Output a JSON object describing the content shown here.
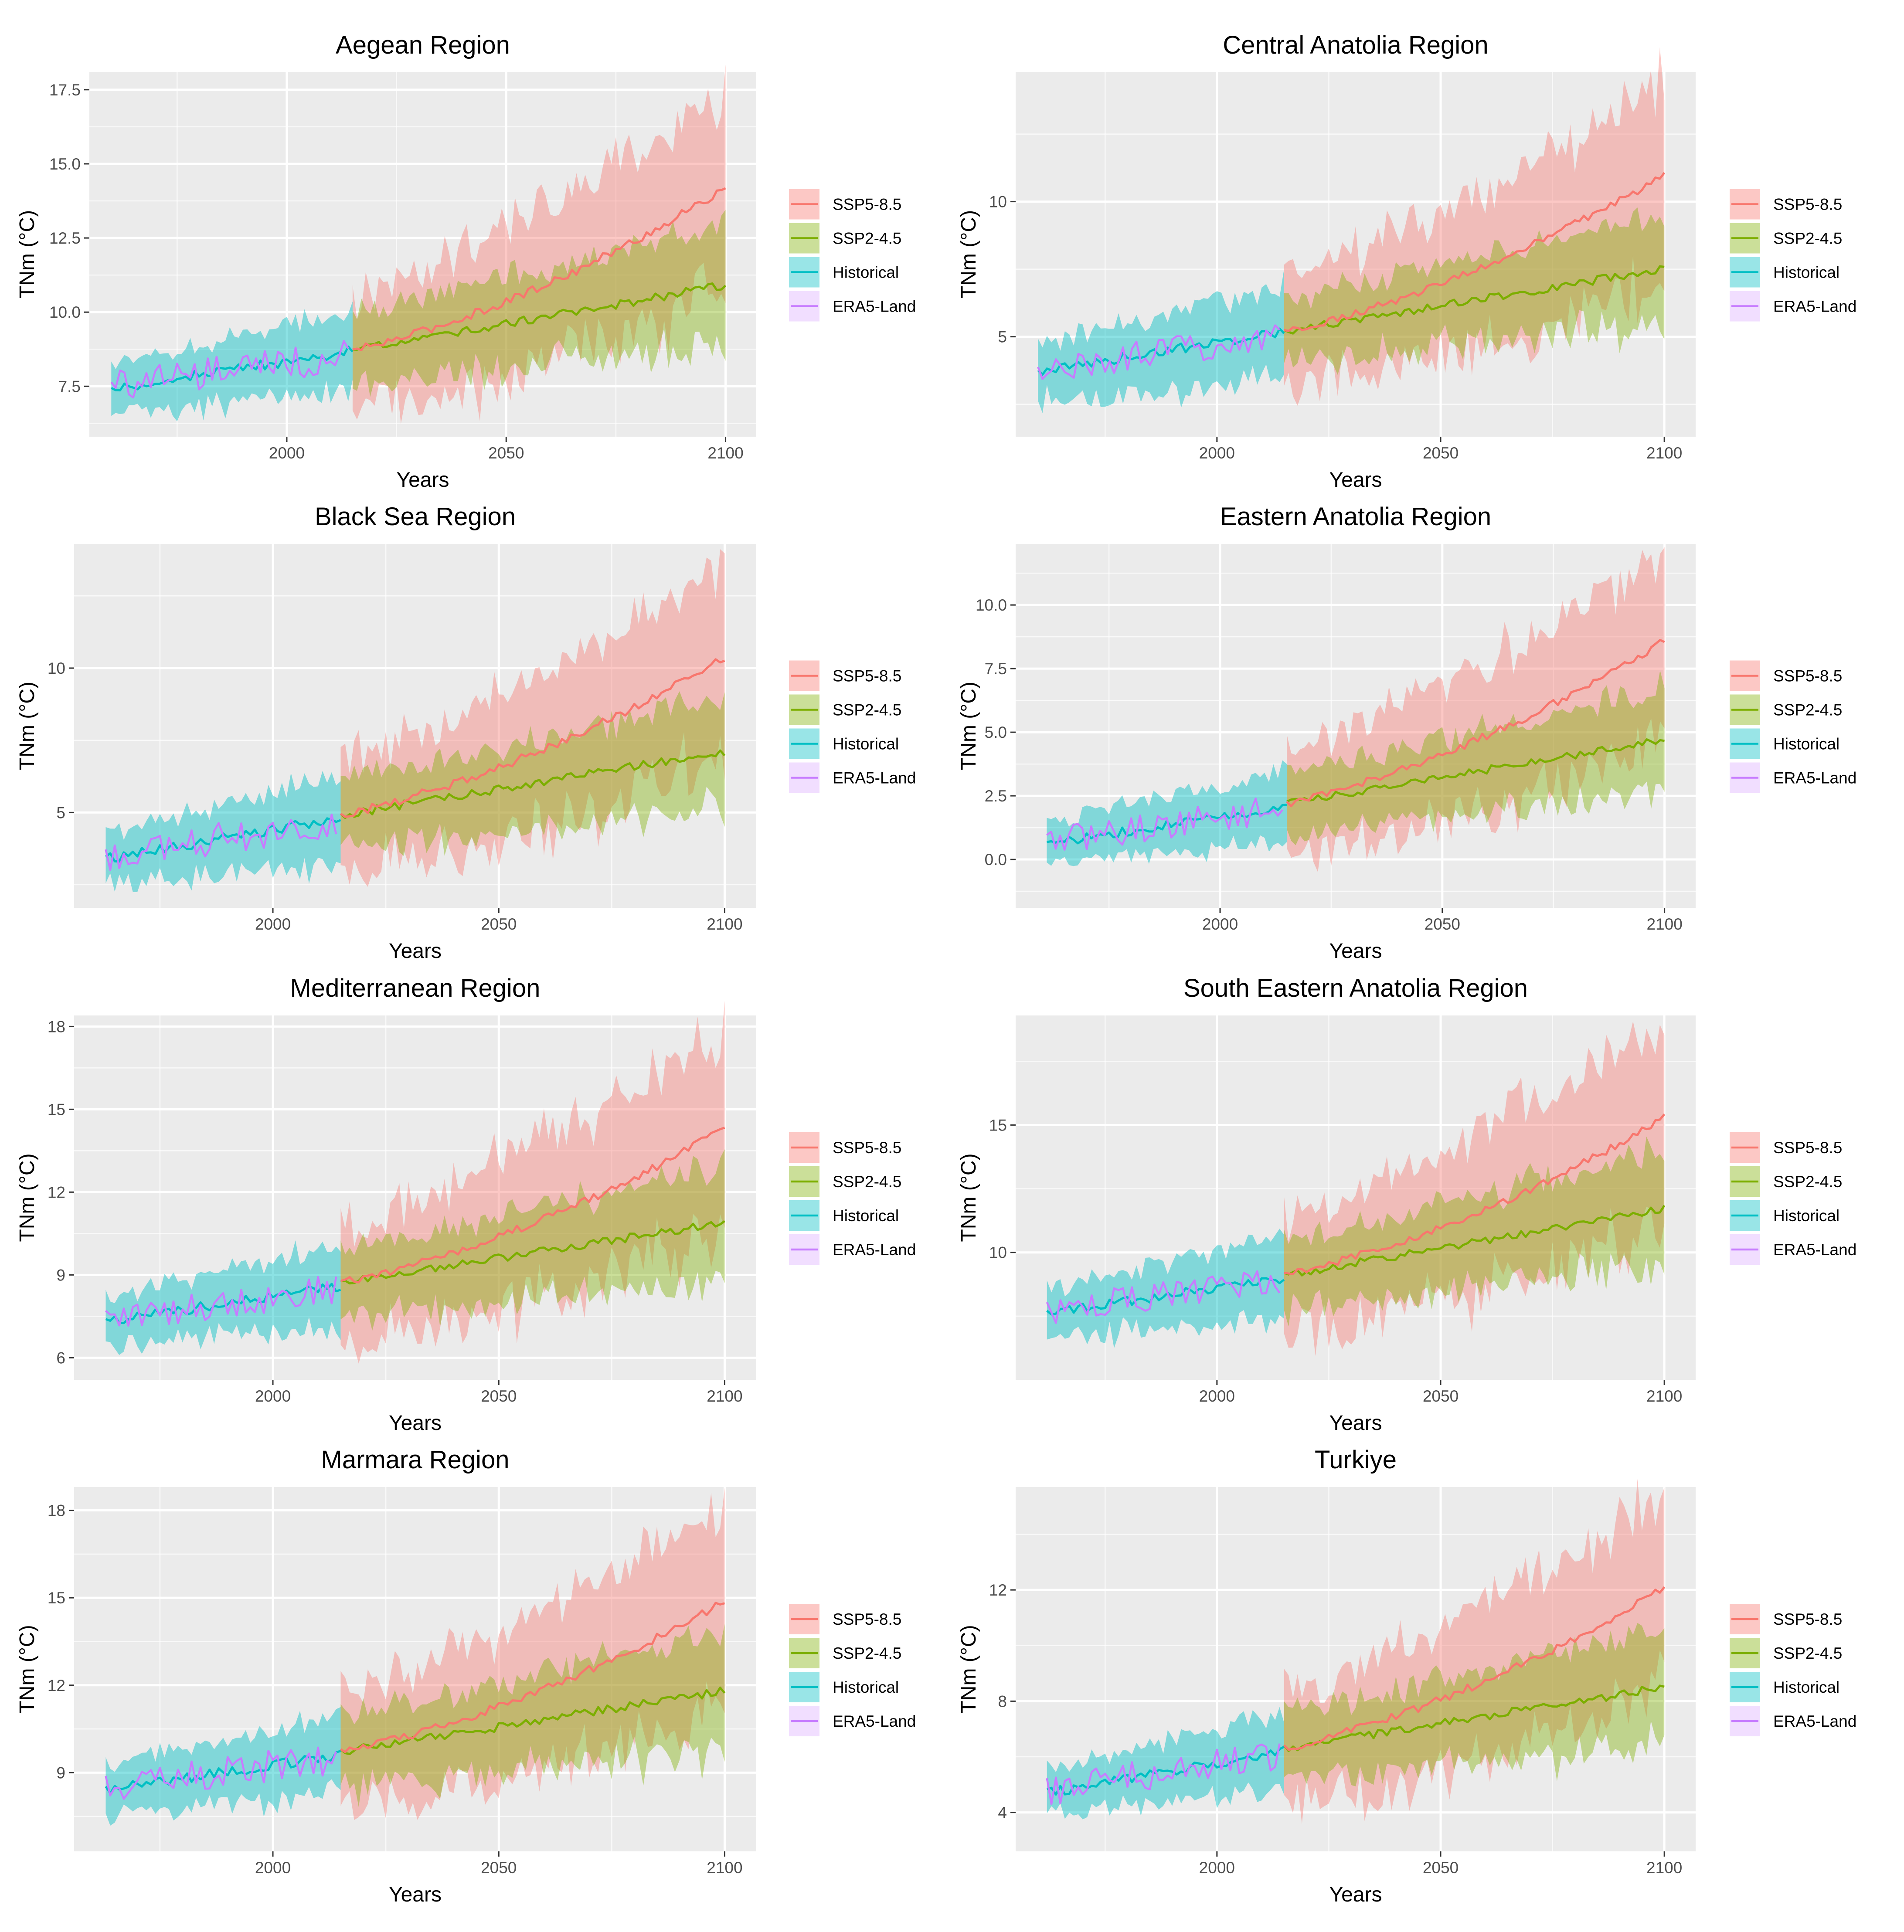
{
  "colors": {
    "panel_bg": "#EBEBEB",
    "grid": "#FFFFFF",
    "ssp585": "#F8766D",
    "ssp245": "#7CAE00",
    "historical": "#00BFC4",
    "era5": "#C77CFF",
    "text": "#000000",
    "tick_text": "#4D4D4D"
  },
  "legend": {
    "items": [
      {
        "key": "ssp585",
        "label": "SSP5-8.5"
      },
      {
        "key": "ssp245",
        "label": "SSP2-4.5"
      },
      {
        "key": "historical",
        "label": "Historical"
      },
      {
        "key": "era5",
        "label": "ERA5-Land"
      }
    ]
  },
  "chart_data": [
    {
      "type": "line",
      "title": "Aegean Region",
      "xlabel": "Years",
      "ylabel": "TNm (°C)",
      "xlim": [
        1955,
        2107
      ],
      "ylim": [
        5.8,
        18.1
      ],
      "xticks": [
        2000,
        2050,
        2100
      ],
      "yticks": [
        7.5,
        10.0,
        12.5,
        15.0,
        17.5
      ],
      "ytick_labels": [
        "7.5",
        "10.0",
        "12.5",
        "15.0",
        "17.5"
      ],
      "historical": {
        "start": 1960,
        "end": 2015,
        "v0": 7.4,
        "v1": 8.7,
        "band": 1.1
      },
      "era5": {
        "start": 1960,
        "end": 2014,
        "v0": 7.5,
        "v1": 8.5
      },
      "ssp245": {
        "start": 2015,
        "end": 2100,
        "v0": 8.7,
        "v1": 10.9,
        "band": 1.6
      },
      "ssp585": {
        "start": 2015,
        "end": 2100,
        "v0": 8.7,
        "v1": 14.2,
        "band": 2.6
      }
    },
    {
      "type": "line",
      "title": "Central Anatolia Region",
      "xlabel": "Years",
      "ylabel": "TNm (°C)",
      "xlim": [
        1955,
        2107
      ],
      "ylim": [
        1.3,
        14.8
      ],
      "xticks": [
        2000,
        2050,
        2100
      ],
      "yticks": [
        5,
        10
      ],
      "ytick_labels": [
        "5",
        "10"
      ],
      "historical": {
        "start": 1960,
        "end": 2015,
        "v0": 3.7,
        "v1": 5.2,
        "band": 1.4
      },
      "era5": {
        "start": 1960,
        "end": 2014,
        "v0": 3.7,
        "v1": 5.1
      },
      "ssp245": {
        "start": 2015,
        "end": 2100,
        "v0": 5.2,
        "v1": 7.5,
        "band": 1.6
      },
      "ssp585": {
        "start": 2015,
        "end": 2100,
        "v0": 5.2,
        "v1": 11.0,
        "band": 2.8
      }
    },
    {
      "type": "line",
      "title": "Black Sea Region",
      "xlabel": "Years",
      "ylabel": "TNm (°C)",
      "xlim": [
        1956,
        2107
      ],
      "ylim": [
        1.7,
        14.3
      ],
      "xticks": [
        2000,
        2050,
        2100
      ],
      "yticks": [
        5,
        10
      ],
      "ytick_labels": [
        "5",
        "10"
      ],
      "historical": {
        "start": 1963,
        "end": 2015,
        "v0": 3.4,
        "v1": 4.8,
        "band": 1.2
      },
      "era5": {
        "start": 1963,
        "end": 2014,
        "v0": 3.5,
        "v1": 4.7
      },
      "ssp245": {
        "start": 2015,
        "end": 2100,
        "v0": 4.9,
        "v1": 7.1,
        "band": 1.5
      },
      "ssp585": {
        "start": 2015,
        "end": 2100,
        "v0": 4.9,
        "v1": 10.4,
        "band": 2.6
      }
    },
    {
      "type": "line",
      "title": "Eastern Anatolia Region",
      "xlabel": "Years",
      "ylabel": "TNm (°C)",
      "xlim": [
        1954,
        2107
      ],
      "ylim": [
        -1.9,
        12.4
      ],
      "xticks": [
        2000,
        2050,
        2100
      ],
      "yticks": [
        0.0,
        2.5,
        5.0,
        7.5,
        10.0
      ],
      "ytick_labels": [
        "0.0",
        "2.5",
        "5.0",
        "7.5",
        "10.0"
      ],
      "historical": {
        "start": 1961,
        "end": 2015,
        "v0": 0.6,
        "v1": 2.1,
        "band": 1.1
      },
      "era5": {
        "start": 1961,
        "end": 2014,
        "v0": 0.7,
        "v1": 2.0
      },
      "ssp245": {
        "start": 2015,
        "end": 2100,
        "v0": 2.2,
        "v1": 4.7,
        "band": 1.6
      },
      "ssp585": {
        "start": 2015,
        "end": 2100,
        "v0": 2.2,
        "v1": 8.6,
        "band": 2.9
      }
    },
    {
      "type": "line",
      "title": "Mediterranean Region",
      "xlabel": "Years",
      "ylabel": "TNm (°C)",
      "xlim": [
        1956,
        2107
      ],
      "ylim": [
        5.2,
        18.4
      ],
      "xticks": [
        2000,
        2050,
        2100
      ],
      "yticks": [
        6,
        9,
        12,
        15,
        18
      ],
      "ytick_labels": [
        "6",
        "9",
        "12",
        "15",
        "18"
      ],
      "historical": {
        "start": 1963,
        "end": 2015,
        "v0": 7.3,
        "v1": 8.6,
        "band": 1.2
      },
      "era5": {
        "start": 1963,
        "end": 2014,
        "v0": 7.4,
        "v1": 8.5
      },
      "ssp245": {
        "start": 2015,
        "end": 2100,
        "v0": 8.7,
        "v1": 10.9,
        "band": 1.6
      },
      "ssp585": {
        "start": 2015,
        "end": 2100,
        "v0": 8.7,
        "v1": 14.3,
        "band": 2.8
      }
    },
    {
      "type": "line",
      "title": "South Eastern Anatolia Region",
      "xlabel": "Years",
      "ylabel": "TNm (°C)",
      "xlim": [
        1955,
        2107
      ],
      "ylim": [
        5.0,
        19.3
      ],
      "xticks": [
        2000,
        2050,
        2100
      ],
      "yticks": [
        10,
        15
      ],
      "ytick_labels": [
        "10",
        "15"
      ],
      "historical": {
        "start": 1962,
        "end": 2015,
        "v0": 7.6,
        "v1": 9.0,
        "band": 1.3
      },
      "era5": {
        "start": 1962,
        "end": 2014,
        "v0": 7.7,
        "v1": 8.9
      },
      "ssp245": {
        "start": 2015,
        "end": 2100,
        "v0": 9.1,
        "v1": 11.7,
        "band": 1.8
      },
      "ssp585": {
        "start": 2015,
        "end": 2100,
        "v0": 9.1,
        "v1": 15.3,
        "band": 3.1
      }
    },
    {
      "type": "line",
      "title": "Marmara Region",
      "xlabel": "Years",
      "ylabel": "TNm (°C)",
      "xlim": [
        1956,
        2107
      ],
      "ylim": [
        6.3,
        18.8
      ],
      "xticks": [
        2000,
        2050,
        2100
      ],
      "yticks": [
        9,
        12,
        15,
        18
      ],
      "ytick_labels": [
        "9",
        "12",
        "15",
        "18"
      ],
      "historical": {
        "start": 1963,
        "end": 2015,
        "v0": 8.4,
        "v1": 9.6,
        "band": 1.1
      },
      "era5": {
        "start": 1963,
        "end": 2014,
        "v0": 8.5,
        "v1": 9.5
      },
      "ssp245": {
        "start": 2015,
        "end": 2100,
        "v0": 9.7,
        "v1": 11.8,
        "band": 1.6
      },
      "ssp585": {
        "start": 2015,
        "end": 2100,
        "v0": 9.7,
        "v1": 14.9,
        "band": 2.7
      }
    },
    {
      "type": "line",
      "title": "Turkiye",
      "xlabel": "Years",
      "ylabel": "TNm (°C)",
      "xlim": [
        1955,
        2107
      ],
      "ylim": [
        2.6,
        15.7
      ],
      "xticks": [
        2000,
        2050,
        2100
      ],
      "yticks": [
        4,
        8,
        12
      ],
      "ytick_labels": [
        "4",
        "8",
        "12"
      ],
      "historical": {
        "start": 1962,
        "end": 2015,
        "v0": 4.7,
        "v1": 6.2,
        "band": 1.1
      },
      "era5": {
        "start": 1962,
        "end": 2014,
        "v0": 4.8,
        "v1": 6.1
      },
      "ssp245": {
        "start": 2015,
        "end": 2100,
        "v0": 6.3,
        "v1": 8.5,
        "band": 1.6
      },
      "ssp585": {
        "start": 2015,
        "end": 2100,
        "v0": 6.3,
        "v1": 12.1,
        "band": 2.7
      }
    }
  ]
}
